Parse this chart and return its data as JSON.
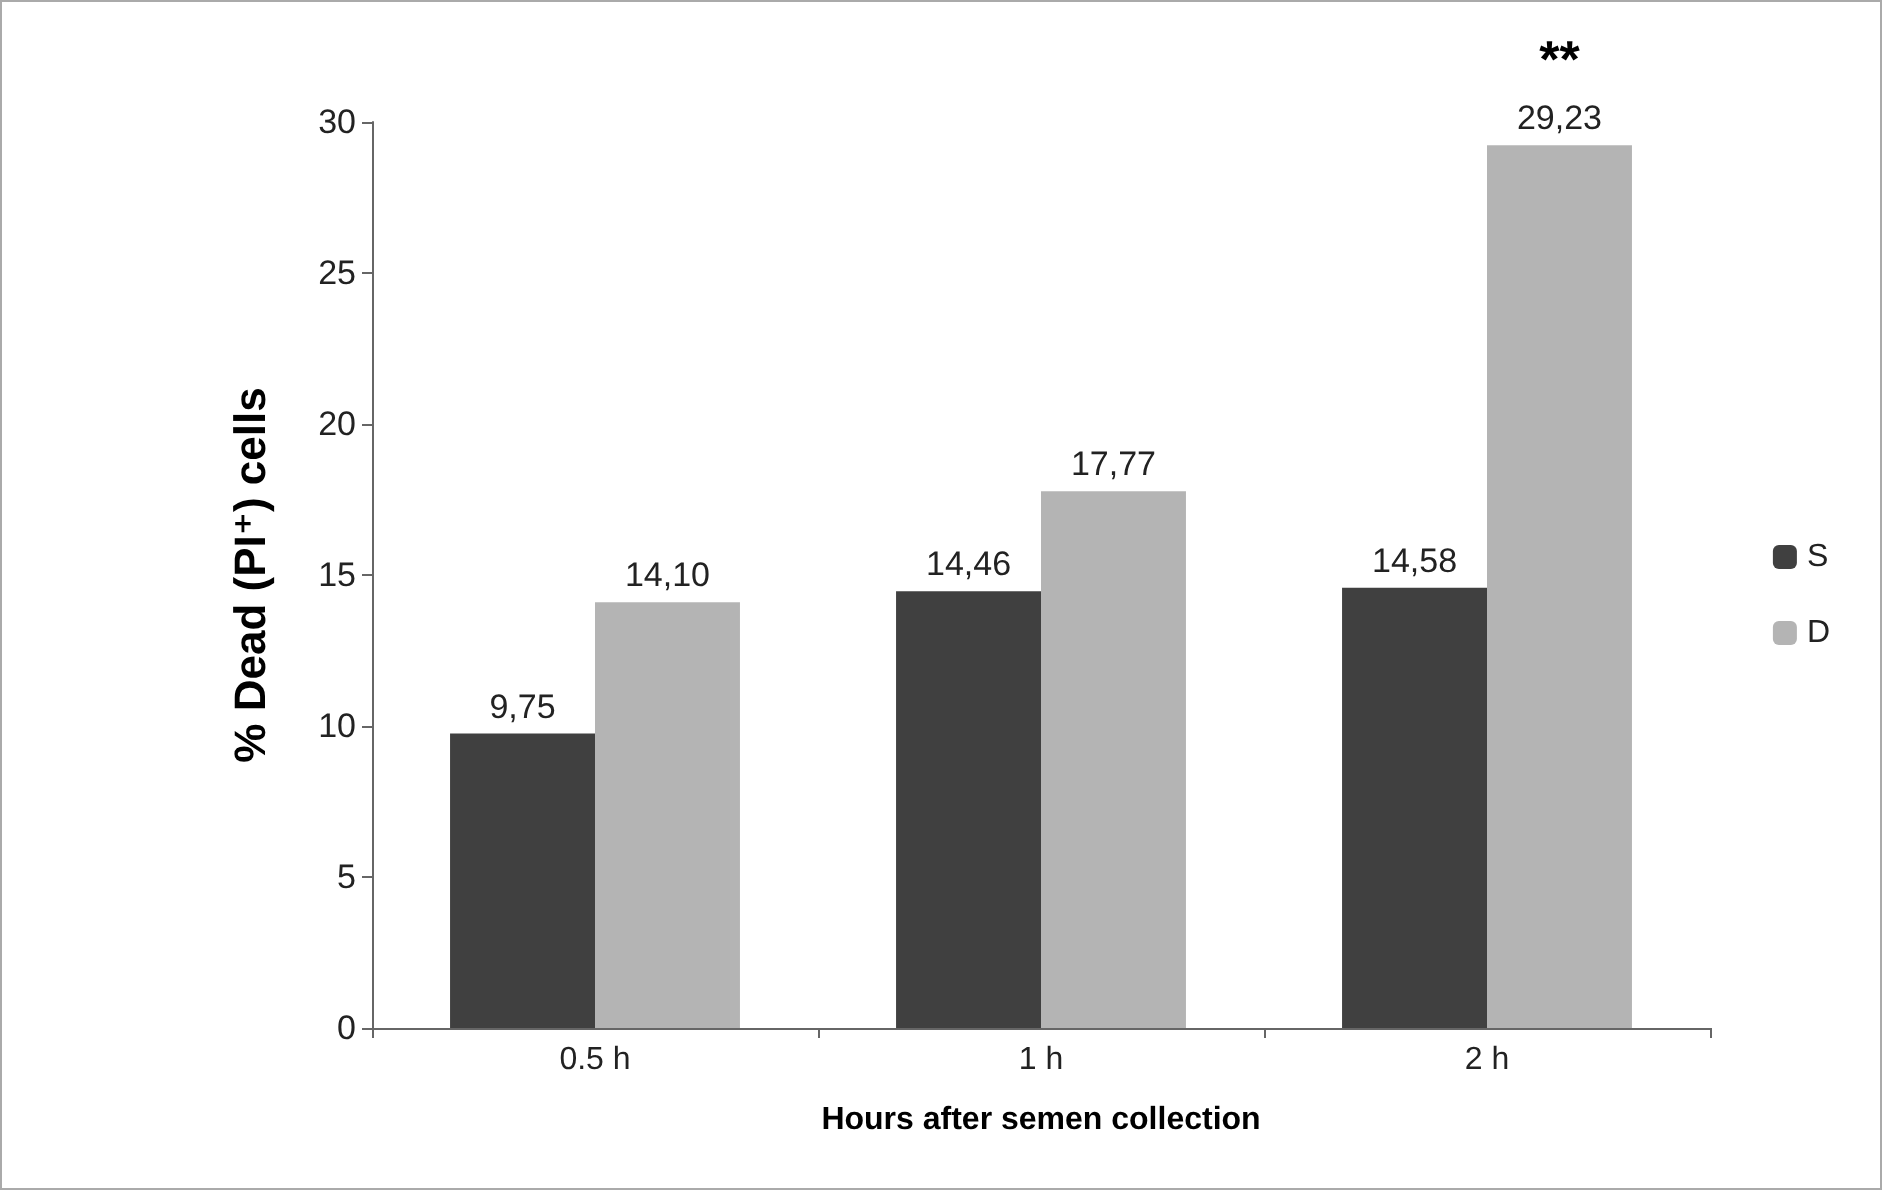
{
  "chart_data": {
    "type": "bar",
    "xlabel": "Hours after semen collection",
    "ylabel": "% Dead (PI⁺) cells",
    "categories": [
      "0.5 h",
      "1 h",
      "2 h"
    ],
    "series": [
      {
        "name": "S",
        "color": "#404040",
        "values": [
          9.75,
          14.46,
          14.58
        ],
        "value_labels": [
          "9,75",
          "14,46",
          "14,58"
        ]
      },
      {
        "name": "D",
        "color": "#b4b4b4",
        "values": [
          14.1,
          17.77,
          29.23
        ],
        "value_labels": [
          "14,10",
          "17,77",
          "29,23"
        ]
      }
    ],
    "ylim": [
      0,
      30
    ],
    "yticks": [
      0,
      5,
      10,
      15,
      20,
      25,
      30
    ],
    "grid": false,
    "legend": "right",
    "annotations": [
      {
        "text": "**",
        "x": "2 h",
        "y": 29.23
      }
    ]
  }
}
